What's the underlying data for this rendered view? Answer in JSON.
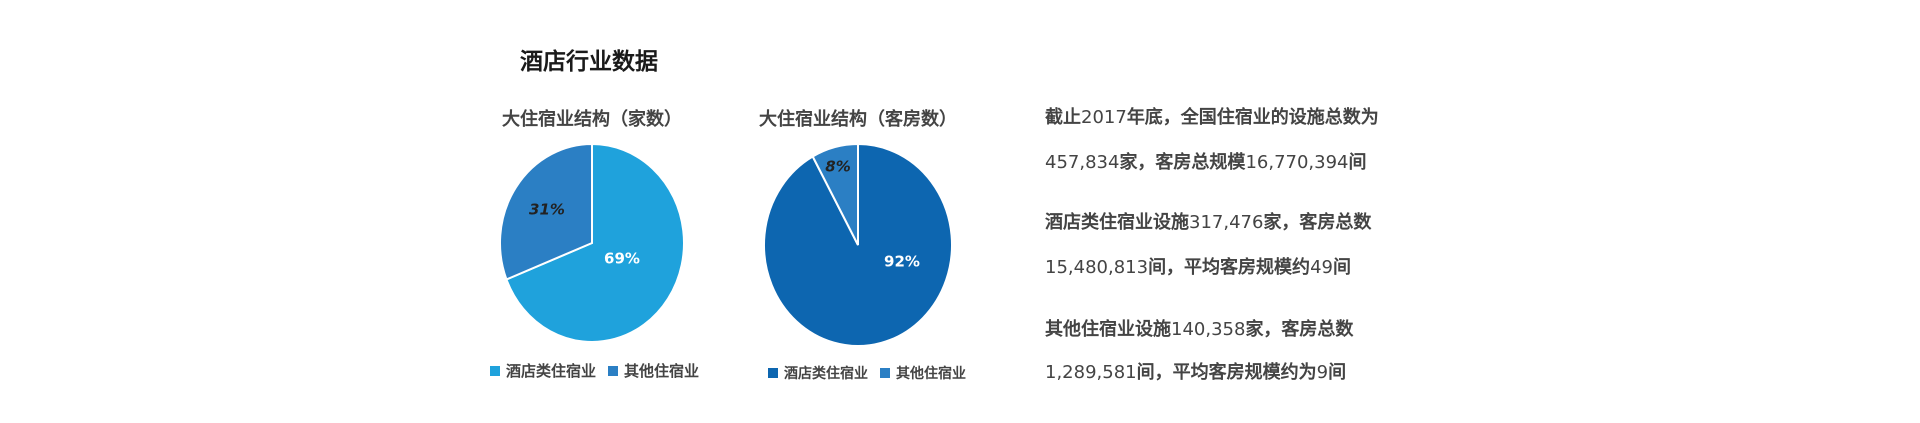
{
  "title": "酒店行业数据",
  "chart_data": [
    {
      "type": "pie",
      "title": "大住宿业结构（家数）",
      "categories": [
        "酒店类住宿业",
        "其他住宿业"
      ],
      "values": [
        69,
        31
      ],
      "labels": [
        "69%",
        "31%"
      ],
      "colors": [
        "#1fa2dc",
        "#2b7fc4"
      ],
      "label_colors": [
        "#ffffff",
        "#222222"
      ],
      "legend": "bottom"
    },
    {
      "type": "pie",
      "title": "大住宿业结构（客房数）",
      "categories": [
        "酒店类住宿业",
        "其他住宿业"
      ],
      "values": [
        92,
        8
      ],
      "labels": [
        "92%",
        "8%"
      ],
      "colors": [
        "#0d66b0",
        "#2b7fc4"
      ],
      "label_colors": [
        "#ffffff",
        "#222222"
      ],
      "legend": "bottom"
    }
  ],
  "summary": [
    "截止2017年底，全国住宿业的设施总数为",
    "457,834家，客房总规模16,770,394间",
    "酒店类住宿业设施317,476家，客房总数",
    "15,480,813间，平均客房规模约49间",
    "其他住宿业设施140,358家，客房总数",
    "1,289,581间，平均客房规模约为9间"
  ]
}
